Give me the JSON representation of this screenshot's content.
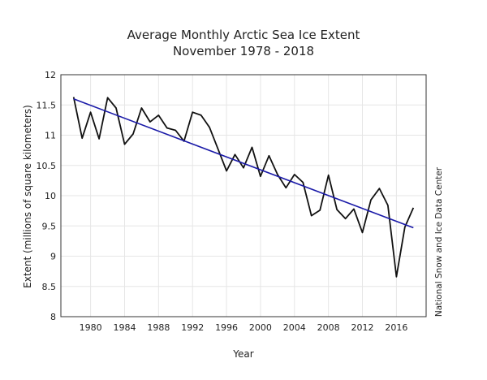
{
  "chart_data": {
    "type": "line",
    "title": "Average Monthly Arctic Sea Ice Extent",
    "subtitle": "November 1978 - 2018",
    "xlabel": "Year",
    "ylabel": "Extent (millions of square kilometers)",
    "credit": "National Snow and Ice Data Center",
    "xlim": [
      1976.5,
      2019.5
    ],
    "ylim": [
      8,
      12
    ],
    "grid": true,
    "x_ticks": [
      1980,
      1984,
      1988,
      1992,
      1996,
      2000,
      2004,
      2008,
      2012,
      2016
    ],
    "y_ticks": [
      8,
      8.5,
      9,
      9.5,
      10,
      10.5,
      11,
      11.5,
      12
    ],
    "y_tick_labels": [
      "8",
      "8.5",
      "9",
      "9.5",
      "10",
      "10.5",
      "11",
      "11.5",
      "12"
    ],
    "series": [
      {
        "color": "#111111",
        "x": [
          1978,
          1979,
          1980,
          1981,
          1982,
          1983,
          1984,
          1985,
          1986,
          1987,
          1988,
          1989,
          1990,
          1991,
          1992,
          1993,
          1994,
          1995,
          1996,
          1997,
          1998,
          1999,
          2000,
          2001,
          2002,
          2003,
          2004,
          2005,
          2006,
          2007,
          2008,
          2009,
          2010,
          2011,
          2012,
          2013,
          2014,
          2015,
          2016,
          2017,
          2018
        ],
        "values": [
          11.63,
          10.95,
          11.38,
          10.94,
          11.62,
          11.45,
          10.85,
          11.02,
          11.45,
          11.22,
          11.33,
          11.12,
          11.08,
          10.9,
          11.38,
          11.33,
          11.13,
          10.77,
          10.41,
          10.68,
          10.46,
          10.8,
          10.32,
          10.66,
          10.35,
          10.13,
          10.35,
          10.22,
          9.67,
          9.76,
          10.34,
          9.77,
          9.62,
          9.78,
          9.39,
          9.93,
          10.12,
          9.84,
          8.66,
          9.48,
          9.8
        ]
      },
      {
        "color": "#1a1aa8",
        "x": [
          1978,
          2018
        ],
        "values": [
          11.6,
          9.47
        ]
      }
    ]
  }
}
